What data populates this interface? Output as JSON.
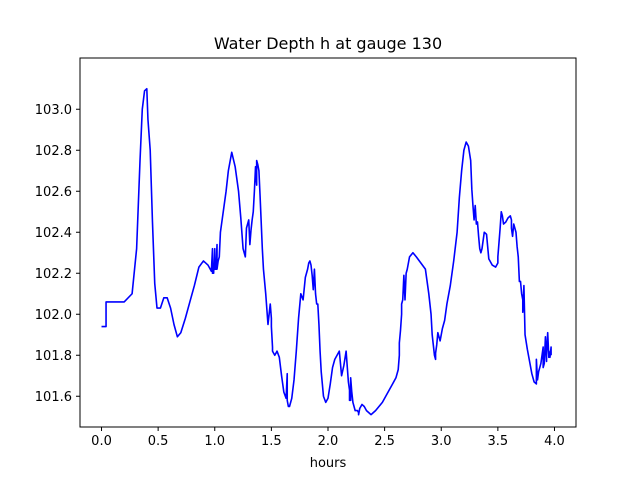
{
  "chart_data": {
    "type": "line",
    "title": "Water Depth h at gauge 130",
    "xlabel": "hours",
    "ylabel": "",
    "xlim": [
      -0.19,
      4.19
    ],
    "ylim": [
      101.45,
      103.25
    ],
    "xticks": [
      0.0,
      0.5,
      1.0,
      1.5,
      2.0,
      2.5,
      3.0,
      3.5,
      4.0
    ],
    "xtick_labels": [
      "0.0",
      "0.5",
      "1.0",
      "1.5",
      "2.0",
      "2.5",
      "3.0",
      "3.5",
      "4.0"
    ],
    "yticks": [
      101.6,
      101.8,
      102.0,
      102.2,
      102.4,
      102.6,
      102.8,
      103.0
    ],
    "ytick_labels": [
      "101.6",
      "101.8",
      "102.0",
      "102.2",
      "102.4",
      "102.6",
      "102.8",
      "103.0"
    ],
    "grid": false,
    "series": [
      {
        "color": "#0000ff",
        "x": [
          0.0,
          0.04,
          0.04,
          0.1,
          0.2,
          0.27,
          0.31,
          0.34,
          0.36,
          0.38,
          0.4,
          0.41,
          0.41,
          0.43,
          0.45,
          0.47,
          0.49,
          0.52,
          0.55,
          0.58,
          0.61,
          0.64,
          0.67,
          0.7,
          0.74,
          0.78,
          0.82,
          0.86,
          0.9,
          0.94,
          0.97,
          0.98,
          0.98,
          0.99,
          1.0,
          1.0,
          1.01,
          1.02,
          1.02,
          1.03,
          1.04,
          1.05,
          1.06,
          1.08,
          1.1,
          1.12,
          1.15,
          1.18,
          1.21,
          1.23,
          1.25,
          1.27,
          1.28,
          1.3,
          1.31,
          1.32,
          1.33,
          1.34,
          1.35,
          1.36,
          1.37,
          1.37,
          1.38,
          1.39,
          1.4,
          1.41,
          1.42,
          1.43,
          1.45,
          1.47,
          1.49,
          1.5,
          1.5,
          1.51,
          1.51,
          1.52,
          1.53,
          1.55,
          1.57,
          1.59,
          1.61,
          1.63,
          1.64,
          1.64,
          1.65,
          1.66,
          1.68,
          1.7,
          1.72,
          1.74,
          1.76,
          1.78,
          1.8,
          1.82,
          1.83,
          1.84,
          1.85,
          1.86,
          1.87,
          1.88,
          1.89,
          1.9,
          1.91,
          1.92,
          1.93,
          1.93,
          1.94,
          1.95,
          1.96,
          1.98,
          2.0,
          2.02,
          2.04,
          2.06,
          2.08,
          2.1,
          2.12,
          2.14,
          2.16,
          2.18,
          2.19,
          2.19,
          2.2,
          2.2,
          2.21,
          2.22,
          2.24,
          2.26,
          2.27,
          2.27,
          2.28,
          2.29,
          2.3,
          2.32,
          2.34,
          2.36,
          2.38,
          2.4,
          2.42,
          2.45,
          2.48,
          2.51,
          2.54,
          2.57,
          2.6,
          2.62,
          2.63,
          2.63,
          2.64,
          2.65,
          2.65,
          2.66,
          2.67,
          2.68,
          2.69,
          2.7,
          2.72,
          2.75,
          2.78,
          2.82,
          2.86,
          2.89,
          2.91,
          2.92,
          2.93,
          2.94,
          2.95,
          2.95,
          2.96,
          2.97,
          2.99,
          3.01,
          3.03,
          3.05,
          3.08,
          3.11,
          3.14,
          3.16,
          3.18,
          3.2,
          3.22,
          3.24,
          3.26,
          3.27,
          3.28,
          3.29,
          3.3,
          3.31,
          3.32,
          3.33,
          3.34,
          3.35,
          3.36,
          3.38,
          3.4,
          3.42,
          3.45,
          3.48,
          3.5,
          3.5,
          3.51,
          3.52,
          3.53,
          3.54,
          3.55,
          3.57,
          3.59,
          3.61,
          3.62,
          3.62,
          3.63,
          3.64,
          3.65,
          3.66,
          3.67,
          3.68,
          3.69,
          3.7,
          3.71,
          3.72,
          3.72,
          3.73,
          3.74,
          3.76,
          3.78,
          3.8,
          3.82,
          3.84,
          3.84,
          3.85,
          3.86,
          3.87,
          3.88,
          3.9,
          3.9,
          3.91,
          3.92,
          3.93,
          3.93,
          3.94,
          3.95,
          3.95,
          3.96,
          3.97,
          3.97
        ],
        "y": [
          101.94,
          101.94,
          102.06,
          102.06,
          102.06,
          102.1,
          102.32,
          102.75,
          103.0,
          103.09,
          103.1,
          102.95,
          102.95,
          102.8,
          102.45,
          102.15,
          102.03,
          102.03,
          102.08,
          102.08,
          102.03,
          101.95,
          101.89,
          101.91,
          101.98,
          102.06,
          102.14,
          102.23,
          102.26,
          102.24,
          102.21,
          102.32,
          102.2,
          102.2,
          102.32,
          102.22,
          102.22,
          102.34,
          102.22,
          102.26,
          102.28,
          102.4,
          102.44,
          102.52,
          102.6,
          102.7,
          102.79,
          102.72,
          102.6,
          102.47,
          102.32,
          102.28,
          102.42,
          102.46,
          102.34,
          102.41,
          102.46,
          102.5,
          102.6,
          102.72,
          102.63,
          102.75,
          102.73,
          102.7,
          102.58,
          102.45,
          102.32,
          102.22,
          102.1,
          101.95,
          102.05,
          101.98,
          101.94,
          101.84,
          101.82,
          101.81,
          101.8,
          101.82,
          101.79,
          101.7,
          101.62,
          101.59,
          101.71,
          101.58,
          101.55,
          101.55,
          101.59,
          101.68,
          101.82,
          101.98,
          102.1,
          102.07,
          102.18,
          102.22,
          102.25,
          102.26,
          102.24,
          102.19,
          102.12,
          102.22,
          102.1,
          102.05,
          102.05,
          101.95,
          101.82,
          101.82,
          101.72,
          101.66,
          101.6,
          101.57,
          101.59,
          101.66,
          101.74,
          101.78,
          101.8,
          101.82,
          101.7,
          101.75,
          101.82,
          101.67,
          101.63,
          101.58,
          101.58,
          101.69,
          101.62,
          101.57,
          101.53,
          101.53,
          101.52,
          101.51,
          101.54,
          101.55,
          101.56,
          101.55,
          101.53,
          101.52,
          101.51,
          101.52,
          101.53,
          101.55,
          101.57,
          101.6,
          101.63,
          101.66,
          101.69,
          101.73,
          101.8,
          101.86,
          101.92,
          102.0,
          102.05,
          102.07,
          102.19,
          102.07,
          102.2,
          102.22,
          102.28,
          102.3,
          102.28,
          102.25,
          102.22,
          102.1,
          102.0,
          101.9,
          101.85,
          101.8,
          101.78,
          101.81,
          101.85,
          101.91,
          101.87,
          101.93,
          101.97,
          102.05,
          102.14,
          102.26,
          102.4,
          102.57,
          102.7,
          102.8,
          102.84,
          102.82,
          102.75,
          102.61,
          102.53,
          102.46,
          102.53,
          102.44,
          102.45,
          102.38,
          102.32,
          102.3,
          102.32,
          102.4,
          102.39,
          102.27,
          102.24,
          102.23,
          102.25,
          102.28,
          102.35,
          102.42,
          102.5,
          102.48,
          102.44,
          102.45,
          102.47,
          102.48,
          102.46,
          102.42,
          102.38,
          102.44,
          102.42,
          102.4,
          102.33,
          102.28,
          102.16,
          102.16,
          102.1,
          102.07,
          102.01,
          102.14,
          101.9,
          101.83,
          101.77,
          101.71,
          101.67,
          101.66,
          101.78,
          101.68,
          101.72,
          101.74,
          101.76,
          101.84,
          101.74,
          101.76,
          101.89,
          101.77,
          101.8,
          101.91,
          101.79,
          101.82,
          101.79,
          101.84,
          101.8
        ]
      }
    ]
  }
}
